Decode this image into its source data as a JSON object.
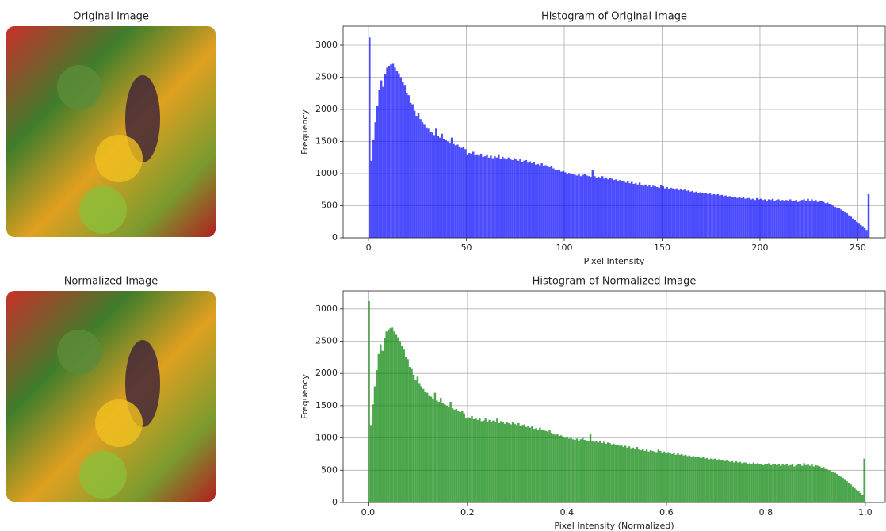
{
  "images": [
    {
      "title": "Original Image"
    },
    {
      "title": "Normalized Image"
    }
  ],
  "chart_data": [
    {
      "type": "histogram",
      "title": "Histogram of Original Image",
      "xlabel": "Pixel Intensity",
      "ylabel": "Frequency",
      "color": "#0000ff",
      "grid": true,
      "xlim": [
        -13,
        264
      ],
      "ylim": [
        0,
        3296
      ],
      "xticks": [
        0,
        50,
        100,
        150,
        200,
        250
      ],
      "yticks": [
        0,
        500,
        1000,
        1500,
        2000,
        2500,
        3000
      ],
      "bins": [
        0,
        1,
        2,
        3,
        4,
        5,
        6,
        7,
        8,
        9,
        10,
        11,
        12,
        13,
        14,
        15,
        16,
        17,
        18,
        19,
        20,
        21,
        22,
        23,
        24,
        25,
        26,
        27,
        28,
        29,
        30,
        31,
        32,
        33,
        34,
        35,
        36,
        37,
        38,
        39,
        40,
        41,
        42,
        43,
        44,
        45,
        46,
        47,
        48,
        49,
        50,
        51,
        52,
        53,
        54,
        55,
        56,
        57,
        58,
        59,
        60,
        61,
        62,
        63,
        64,
        65,
        66,
        67,
        68,
        69,
        70,
        71,
        72,
        73,
        74,
        75,
        76,
        77,
        78,
        79,
        80,
        81,
        82,
        83,
        84,
        85,
        86,
        87,
        88,
        89,
        90,
        91,
        92,
        93,
        94,
        95,
        96,
        97,
        98,
        99,
        100,
        101,
        102,
        103,
        104,
        105,
        106,
        107,
        108,
        109,
        110,
        111,
        112,
        113,
        114,
        115,
        116,
        117,
        118,
        119,
        120,
        121,
        122,
        123,
        124,
        125,
        126,
        127,
        128,
        129,
        130,
        131,
        132,
        133,
        134,
        135,
        136,
        137,
        138,
        139,
        140,
        141,
        142,
        143,
        144,
        145,
        146,
        147,
        148,
        149,
        150,
        151,
        152,
        153,
        154,
        155,
        156,
        157,
        158,
        159,
        160,
        161,
        162,
        163,
        164,
        165,
        166,
        167,
        168,
        169,
        170,
        171,
        172,
        173,
        174,
        175,
        176,
        177,
        178,
        179,
        180,
        181,
        182,
        183,
        184,
        185,
        186,
        187,
        188,
        189,
        190,
        191,
        192,
        193,
        194,
        195,
        196,
        197,
        198,
        199,
        200,
        201,
        202,
        203,
        204,
        205,
        206,
        207,
        208,
        209,
        210,
        211,
        212,
        213,
        214,
        215,
        216,
        217,
        218,
        219,
        220,
        221,
        222,
        223,
        224,
        225,
        226,
        227,
        228,
        229,
        230,
        231,
        232,
        233,
        234,
        235,
        236,
        237,
        238,
        239,
        240,
        241,
        242,
        243,
        244,
        245,
        246,
        247,
        248,
        249,
        250,
        251,
        252,
        253,
        254,
        255,
        256
      ],
      "values": [
        3120,
        1200,
        1520,
        1800,
        2050,
        2300,
        2450,
        2350,
        2550,
        2650,
        2680,
        2700,
        2710,
        2650,
        2600,
        2560,
        2500,
        2420,
        2380,
        2260,
        2220,
        2100,
        2080,
        1980,
        1900,
        1950,
        1850,
        1800,
        1760,
        1720,
        1700,
        1650,
        1640,
        1600,
        1700,
        1580,
        1560,
        1620,
        1540,
        1520,
        1500,
        1480,
        1560,
        1460,
        1440,
        1450,
        1420,
        1400,
        1420,
        1380,
        1300,
        1320,
        1310,
        1340,
        1290,
        1300,
        1280,
        1310,
        1260,
        1270,
        1300,
        1250,
        1280,
        1240,
        1270,
        1250,
        1300,
        1230,
        1260,
        1240,
        1220,
        1250,
        1230,
        1210,
        1240,
        1220,
        1200,
        1230,
        1180,
        1200,
        1210,
        1170,
        1190,
        1160,
        1180,
        1140,
        1150,
        1130,
        1160,
        1120,
        1130,
        1110,
        1100,
        1120,
        1080,
        1060,
        1050,
        1060,
        1030,
        1040,
        1020,
        1000,
        1010,
        990,
        1000,
        980,
        970,
        990,
        960,
        980,
        1000,
        970,
        960,
        950,
        1060,
        960,
        940,
        950,
        930,
        960,
        920,
        940,
        910,
        930,
        920,
        900,
        910,
        890,
        900,
        880,
        890,
        860,
        880,
        850,
        870,
        840,
        850,
        830,
        860,
        820,
        810,
        830,
        800,
        820,
        790,
        810,
        800,
        790,
        780,
        820,
        800,
        770,
        790,
        760,
        780,
        770,
        750,
        770,
        740,
        760,
        740,
        750,
        730,
        740,
        720,
        730,
        710,
        720,
        700,
        710,
        700,
        690,
        700,
        680,
        690,
        670,
        680,
        670,
        680,
        660,
        670,
        650,
        660,
        640,
        650,
        640,
        630,
        640,
        620,
        640,
        620,
        630,
        610,
        620,
        620,
        600,
        610,
        590,
        620,
        600,
        610,
        590,
        600,
        580,
        600,
        590,
        610,
        580,
        590,
        600,
        580,
        590,
        570,
        590,
        580,
        600,
        570,
        580,
        590,
        560,
        580,
        590,
        600,
        570,
        610,
        580,
        600,
        570,
        590,
        560,
        580,
        570,
        560,
        540,
        550,
        520,
        510,
        500,
        480,
        470,
        460,
        440,
        420,
        400,
        380,
        350,
        330,
        300,
        280,
        250,
        220,
        200,
        180,
        150,
        120,
        680
      ]
    },
    {
      "type": "histogram",
      "title": "Histogram of Normalized Image",
      "xlabel": "Pixel Intensity (Normalized)",
      "ylabel": "Frequency",
      "color": "#008000",
      "grid": true,
      "xlim": [
        -0.05,
        1.04
      ],
      "ylim": [
        0,
        3280
      ],
      "xticks": [
        {
          "value": 0,
          "label": "0.0"
        },
        0.2,
        0.4,
        0.6,
        0.8,
        {
          "value": 1,
          "label": "1.0"
        }
      ],
      "yticks": [
        0,
        500,
        1000,
        1500,
        2000,
        2500,
        3000
      ],
      "bins": [
        0,
        0.0039,
        0.0078,
        0.0117,
        0.0156,
        0.0195,
        0.0234,
        0.0273,
        0.0313,
        0.0352,
        0.0391,
        0.043,
        0.0469,
        0.0508,
        0.0547,
        0.0586,
        0.0625,
        0.0664,
        0.0703,
        0.0742,
        0.0781,
        0.082,
        0.0859,
        0.0898,
        0.0938,
        0.0977,
        0.1016,
        0.1055,
        0.1094,
        0.1133,
        0.1172,
        0.1211,
        0.125,
        0.1289,
        0.1328,
        0.1367,
        0.1406,
        0.1445,
        0.1484,
        0.1523,
        0.1563,
        0.1602,
        0.1641,
        0.168,
        0.1719,
        0.1758,
        0.1797,
        0.1836,
        0.1875,
        0.1914,
        0.1953,
        0.1992,
        0.2031,
        0.207,
        0.2109,
        0.2148,
        0.2188,
        0.2227,
        0.2266,
        0.2305,
        0.2344,
        0.2383,
        0.2422,
        0.2461,
        0.25,
        0.2539,
        0.2578,
        0.2617,
        0.2656,
        0.2695,
        0.2734,
        0.2773,
        0.2813,
        0.2852,
        0.2891,
        0.293,
        0.2969,
        0.3008,
        0.3047,
        0.3086,
        0.3125,
        0.3164,
        0.3203,
        0.3242,
        0.3281,
        0.332,
        0.3359,
        0.3398,
        0.3438,
        0.3477,
        0.3516,
        0.3555,
        0.3594,
        0.3633,
        0.3672,
        0.3711,
        0.375,
        0.3789,
        0.3828,
        0.3867,
        0.3906,
        0.3945,
        0.3984,
        0.4023,
        0.4063,
        0.4102,
        0.4141,
        0.418,
        0.4219,
        0.4258,
        0.4297,
        0.4336,
        0.4375,
        0.4414,
        0.4453,
        0.4492,
        0.4531,
        0.457,
        0.4609,
        0.4648,
        0.4688,
        0.4727,
        0.4766,
        0.4805,
        0.4844,
        0.4883,
        0.4922,
        0.4961,
        0.5,
        0.5039,
        0.5078,
        0.5117,
        0.5156,
        0.5195,
        0.5234,
        0.5273,
        0.5313,
        0.5352,
        0.5391,
        0.543,
        0.5469,
        0.5508,
        0.5547,
        0.5586,
        0.5625,
        0.5664,
        0.5703,
        0.5742,
        0.5781,
        0.582,
        0.5859,
        0.5898,
        0.5938,
        0.5977,
        0.6016,
        0.6055,
        0.6094,
        0.6133,
        0.6172,
        0.6211,
        0.625,
        0.6289,
        0.6328,
        0.6367,
        0.6406,
        0.6445,
        0.6484,
        0.6523,
        0.6563,
        0.6602,
        0.6641,
        0.668,
        0.6719,
        0.6758,
        0.6797,
        0.6836,
        0.6875,
        0.6914,
        0.6953,
        0.6992,
        0.7031,
        0.707,
        0.7109,
        0.7148,
        0.7188,
        0.7227,
        0.7266,
        0.7305,
        0.7344,
        0.7383,
        0.7422,
        0.7461,
        0.75,
        0.7539,
        0.7578,
        0.7617,
        0.7656,
        0.7695,
        0.7734,
        0.7773,
        0.7813,
        0.7852,
        0.7891,
        0.793,
        0.7969,
        0.8008,
        0.8047,
        0.8086,
        0.8125,
        0.8164,
        0.8203,
        0.8242,
        0.8281,
        0.832,
        0.8359,
        0.8398,
        0.8438,
        0.8477,
        0.8516,
        0.8555,
        0.8594,
        0.8633,
        0.8672,
        0.8711,
        0.875,
        0.8789,
        0.8828,
        0.8867,
        0.8906,
        0.8945,
        0.8984,
        0.9023,
        0.9063,
        0.9102,
        0.9141,
        0.918,
        0.9219,
        0.9258,
        0.9297,
        0.9336,
        0.9375,
        0.9414,
        0.9453,
        0.9492,
        0.9531,
        0.957,
        0.9609,
        0.9648,
        0.9688,
        0.9727,
        0.9766,
        0.9805,
        0.9844,
        0.9883,
        0.9922,
        0.9961,
        1
      ],
      "values": [
        3120,
        1200,
        1520,
        1800,
        2050,
        2300,
        2450,
        2350,
        2550,
        2650,
        2680,
        2700,
        2710,
        2650,
        2600,
        2560,
        2500,
        2420,
        2380,
        2260,
        2220,
        2100,
        2080,
        1980,
        1900,
        1950,
        1850,
        1800,
        1760,
        1720,
        1700,
        1650,
        1640,
        1600,
        1700,
        1580,
        1560,
        1620,
        1540,
        1520,
        1500,
        1480,
        1560,
        1460,
        1440,
        1450,
        1420,
        1400,
        1420,
        1380,
        1300,
        1320,
        1310,
        1340,
        1290,
        1300,
        1280,
        1310,
        1260,
        1270,
        1300,
        1250,
        1280,
        1240,
        1270,
        1250,
        1300,
        1230,
        1260,
        1240,
        1220,
        1250,
        1230,
        1210,
        1240,
        1220,
        1200,
        1230,
        1180,
        1200,
        1210,
        1170,
        1190,
        1160,
        1180,
        1140,
        1150,
        1130,
        1160,
        1120,
        1130,
        1110,
        1100,
        1120,
        1080,
        1060,
        1050,
        1060,
        1030,
        1040,
        1020,
        1000,
        1010,
        990,
        1000,
        980,
        970,
        990,
        960,
        980,
        1000,
        970,
        960,
        950,
        1060,
        960,
        940,
        950,
        930,
        960,
        920,
        940,
        910,
        930,
        920,
        900,
        910,
        890,
        900,
        880,
        890,
        860,
        880,
        850,
        870,
        840,
        850,
        830,
        860,
        820,
        810,
        830,
        800,
        820,
        790,
        810,
        800,
        790,
        780,
        820,
        800,
        770,
        790,
        760,
        780,
        770,
        750,
        770,
        740,
        760,
        740,
        750,
        730,
        740,
        720,
        730,
        710,
        720,
        700,
        710,
        700,
        690,
        700,
        680,
        690,
        670,
        680,
        670,
        680,
        660,
        670,
        650,
        660,
        640,
        650,
        640,
        630,
        640,
        620,
        640,
        620,
        630,
        610,
        620,
        620,
        600,
        610,
        590,
        620,
        600,
        610,
        590,
        600,
        580,
        600,
        590,
        610,
        580,
        590,
        600,
        580,
        590,
        570,
        590,
        580,
        600,
        570,
        580,
        590,
        560,
        580,
        590,
        600,
        570,
        610,
        580,
        600,
        570,
        590,
        560,
        580,
        570,
        560,
        540,
        550,
        520,
        510,
        500,
        480,
        470,
        460,
        440,
        420,
        400,
        380,
        350,
        330,
        300,
        280,
        250,
        220,
        200,
        180,
        150,
        120,
        680
      ]
    }
  ]
}
